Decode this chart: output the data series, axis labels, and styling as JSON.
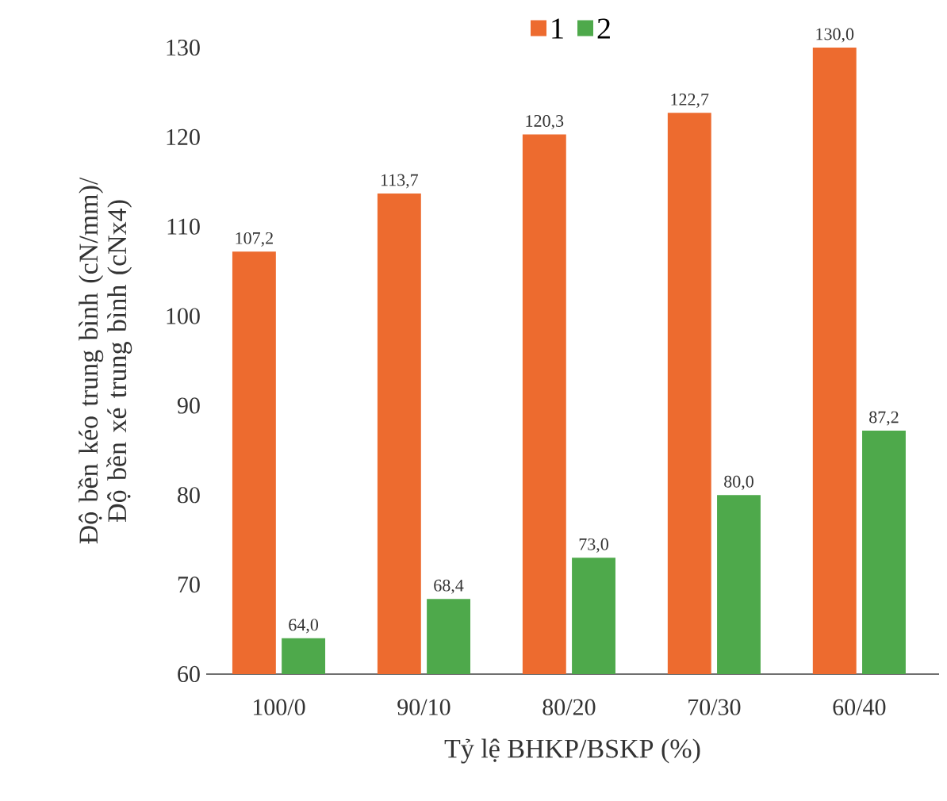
{
  "chart_data": {
    "type": "bar",
    "xlabel": "Tỷ lệ BHKP/BSKP   (%)",
    "ylabel": "Độ bền kéo trung bình (cN/mm)/ Độ bền xé trung bình (cNx4)",
    "categories": [
      "100/0",
      "90/10",
      "80/20",
      "70/30",
      "60/40"
    ],
    "series": [
      {
        "name": "1",
        "color": "#ed6b2f",
        "values": [
          107.2,
          113.7,
          120.3,
          122.7,
          130.0
        ],
        "value_labels": [
          "107,2",
          "113,7",
          "120,3",
          "122,7",
          "130,0"
        ]
      },
      {
        "name": "2",
        "color": "#4ea94b",
        "values": [
          64.0,
          68.4,
          73.0,
          80.0,
          87.2
        ],
        "value_labels": [
          "64,0",
          "68,4",
          "73,0",
          "80,0",
          "87,2"
        ]
      }
    ],
    "ylim": [
      60,
      130
    ],
    "yticks": [
      60,
      70,
      80,
      90,
      100,
      110,
      120,
      130
    ],
    "legend": "top",
    "grid": false
  }
}
